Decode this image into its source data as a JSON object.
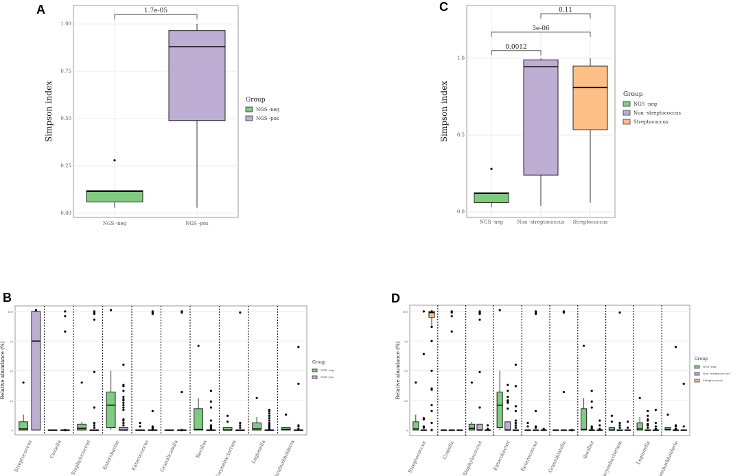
{
  "chart_data": [
    {
      "panel": "A",
      "type": "box",
      "ylabel": "Simpson index",
      "xlabel": "",
      "ylim": [
        -0.02,
        1.1
      ],
      "yticks": [
        "0.00",
        "0.25",
        "0.50",
        "0.75",
        "1.00"
      ],
      "ytick_values": [
        0,
        0.25,
        0.5,
        0.75,
        1.0
      ],
      "legend_title": "Group",
      "legend_position": "right",
      "groups": [
        {
          "name": "NGS -neg",
          "color": "#7FCB7F",
          "lo": 0.03,
          "q1": 0.06,
          "med": 0.115,
          "q3": 0.12,
          "hi": 0.12,
          "outliers": [
            0.28
          ]
        },
        {
          "name": "NGS -pos",
          "color": "#BEAED4",
          "lo": 0.03,
          "q1": 0.49,
          "med": 0.88,
          "q3": 0.965,
          "hi": 1.0,
          "outliers": []
        }
      ],
      "comparisons": [
        {
          "from": 0,
          "to": 1,
          "label": "1.7e-05",
          "y": 1.05
        }
      ]
    },
    {
      "panel": "C",
      "type": "box",
      "ylabel": "Simpson index",
      "xlabel": "",
      "ylim": [
        -0.03,
        1.37
      ],
      "yticks": [
        "0.0",
        "0.5",
        "1.0"
      ],
      "ytick_values": [
        0,
        0.5,
        1.0
      ],
      "legend_title": "Group",
      "legend_position": "right",
      "groups": [
        {
          "name": "NGS -neg",
          "color": "#7FCB7F",
          "lo": 0.03,
          "q1": 0.06,
          "med": 0.12,
          "q3": 0.125,
          "hi": 0.125,
          "outliers": [
            0.28
          ]
        },
        {
          "name": "Non -streptococcus",
          "color": "#BEAED4",
          "lo": 0.04,
          "q1": 0.24,
          "med": 0.945,
          "q3": 0.99,
          "hi": 1.0,
          "outliers": []
        },
        {
          "name": "Streptococcus",
          "color": "#FDC086",
          "lo": 0.06,
          "q1": 0.535,
          "med": 0.81,
          "q3": 0.95,
          "hi": 1.0,
          "outliers": []
        }
      ],
      "comparisons": [
        {
          "from": 0,
          "to": 1,
          "label": "0.0012",
          "y": 1.05
        },
        {
          "from": 0,
          "to": 2,
          "label": "3e-06",
          "y": 1.17
        },
        {
          "from": 1,
          "to": 2,
          "label": "0.11",
          "y": 1.29
        }
      ]
    },
    {
      "panel": "B",
      "type": "box",
      "ylabel": "Relative abundance (%)",
      "xlabel": "",
      "ylim": [
        -5,
        105
      ],
      "yticks": [
        "0",
        "25",
        "50",
        "75",
        "100"
      ],
      "ytick_values": [
        0,
        25,
        50,
        75,
        100
      ],
      "legend_title": "Group",
      "legend_position": "right",
      "group_names": [
        "NGS -neg",
        "NGS -pos"
      ],
      "group_colors": [
        "#7FCB7F",
        "#BEAED4"
      ],
      "categories": [
        "Streptococcus",
        "Coxiella",
        "Staphylococcus",
        "Enterobacter",
        "Enterococcus",
        "Granulicatella",
        "Bacillus",
        "Corynebacterium",
        "Legionella",
        "Paraburkholderia"
      ],
      "boxes": [
        [
          {
            "lo": 0,
            "q1": 0,
            "med": 1,
            "q3": 7,
            "hi": 13,
            "outliers": [
              40
            ]
          },
          {
            "lo": 0,
            "q1": 0,
            "med": 75,
            "q3": 100,
            "hi": 100,
            "outliers": [
              101
            ]
          }
        ],
        [
          {
            "lo": 0,
            "q1": 0,
            "med": 0,
            "q3": 0,
            "hi": 0,
            "outliers": []
          },
          {
            "lo": 0,
            "q1": 0,
            "med": 0,
            "q3": 0,
            "hi": 0,
            "outliers": [
              100,
              96,
              83,
              0
            ]
          }
        ],
        [
          {
            "lo": 0,
            "q1": 0,
            "med": 1.5,
            "q3": 5,
            "hi": 7,
            "outliers": [
              40
            ]
          },
          {
            "lo": 0,
            "q1": 0,
            "med": 0,
            "q3": 0,
            "hi": 0,
            "outliers": [
              100,
              99,
              98,
              93,
              49,
              19,
              6,
              4,
              2
            ]
          }
        ],
        [
          {
            "lo": 0,
            "q1": 2,
            "med": 21,
            "q3": 32,
            "hi": 50,
            "outliers": [
              101
            ]
          },
          {
            "lo": 0,
            "q1": 0,
            "med": 0,
            "q3": 2,
            "hi": 2,
            "outliers": [
              55,
              38,
              37,
              33,
              28,
              26,
              25,
              23,
              21,
              19,
              17,
              9,
              8,
              6,
              4
            ]
          }
        ],
        [
          {
            "lo": 0,
            "q1": 0,
            "med": 0,
            "q3": 0,
            "hi": 0,
            "outliers": [
              6,
              3
            ]
          },
          {
            "lo": 0,
            "q1": 0,
            "med": 0,
            "q3": 0,
            "hi": 0,
            "outliers": [
              100,
              99,
              98,
              16,
              3,
              2,
              1
            ]
          }
        ],
        [
          {
            "lo": 0,
            "q1": 0,
            "med": 0,
            "q3": 0,
            "hi": 0,
            "outliers": []
          },
          {
            "lo": 0,
            "q1": 0,
            "med": 0,
            "q3": 0,
            "hi": 0,
            "outliers": [
              100,
              99,
              32,
              0
            ]
          }
        ],
        [
          {
            "lo": 0,
            "q1": 0,
            "med": 0.5,
            "q3": 18,
            "hi": 27,
            "outliers": [
              71
            ]
          },
          {
            "lo": 0,
            "q1": 0,
            "med": 0,
            "q3": 0,
            "hi": 0,
            "outliers": [
              33,
              24,
              19,
              8,
              4,
              3,
              2,
              1
            ]
          }
        ],
        [
          {
            "lo": 0,
            "q1": 0,
            "med": 0,
            "q3": 2,
            "hi": 2,
            "outliers": [
              12,
              7
            ]
          },
          {
            "lo": 0,
            "q1": 0,
            "med": 0,
            "q3": 0,
            "hi": 0,
            "outliers": [
              99,
              6,
              4,
              2
            ]
          }
        ],
        [
          {
            "lo": 0,
            "q1": 0,
            "med": 1,
            "q3": 6,
            "hi": 11,
            "outliers": [
              27
            ]
          },
          {
            "lo": 0,
            "q1": 0,
            "med": 0,
            "q3": 0,
            "hi": 0,
            "outliers": [
              17,
              16,
              14,
              12,
              10,
              8,
              6,
              5,
              4,
              3,
              2,
              1
            ]
          }
        ],
        [
          {
            "lo": 0,
            "q1": 0,
            "med": 0.5,
            "q3": 2,
            "hi": 2.5,
            "outliers": [
              13
            ]
          },
          {
            "lo": 0,
            "q1": 0,
            "med": 0,
            "q3": 0,
            "hi": 0,
            "outliers": [
              70,
              39,
              4,
              3,
              1
            ]
          }
        ]
      ]
    },
    {
      "panel": "D",
      "type": "box",
      "ylabel": "Relative abundance (%)",
      "xlabel": "",
      "ylim": [
        -5,
        105
      ],
      "yticks": [
        "0",
        "25",
        "50",
        "75",
        "100"
      ],
      "ytick_values": [
        0,
        25,
        50,
        75,
        100
      ],
      "legend_title": "Group",
      "legend_position": "right",
      "group_names": [
        "NGS -neg",
        "Non -streptococcus",
        "Streptococcus"
      ],
      "group_colors": [
        "#7FCB7F",
        "#BEAED4",
        "#FDC086"
      ],
      "categories": [
        "Streptococcus",
        "Coxiella",
        "Staphylococcus",
        "Enterobacter",
        "Enterococcus",
        "Granulicatella",
        "Bacillus",
        "Corynebacterium",
        "Legionella",
        "Paraburkholderia"
      ],
      "boxes": [
        [
          {
            "lo": 0,
            "q1": 0,
            "med": 1,
            "q3": 7,
            "hi": 13,
            "outliers": [
              40
            ]
          },
          {
            "lo": 0,
            "q1": 0,
            "med": 0,
            "q3": 0,
            "hi": 0,
            "outliers": [
              100,
              64,
              10,
              9,
              3,
              2
            ]
          },
          {
            "lo": 88,
            "q1": 95,
            "med": 99,
            "q3": 100,
            "hi": 100,
            "outliers": [
              100,
              87,
              75,
              50,
              35,
              34,
              21,
              16,
              6,
              0
            ]
          }
        ],
        [
          {
            "lo": 0,
            "q1": 0,
            "med": 0,
            "q3": 0,
            "hi": 0,
            "outliers": []
          },
          {
            "lo": 0,
            "q1": 0,
            "med": 0,
            "q3": 0,
            "hi": 0,
            "outliers": [
              100,
              99,
              96,
              83
            ]
          },
          {
            "lo": 0,
            "q1": 0,
            "med": 0,
            "q3": 0,
            "hi": 0,
            "outliers": []
          }
        ],
        [
          {
            "lo": 0,
            "q1": 0,
            "med": 1.5,
            "q3": 5,
            "hi": 7,
            "outliers": [
              40
            ]
          },
          {
            "lo": 0,
            "q1": 0,
            "med": 0,
            "q3": 5,
            "hi": 5,
            "outliers": [
              100,
              99,
              98,
              93,
              49,
              19
            ]
          },
          {
            "lo": 0,
            "q1": 0,
            "med": 0,
            "q3": 0,
            "hi": 0,
            "outliers": [
              4,
              1
            ]
          }
        ],
        [
          {
            "lo": 0,
            "q1": 2,
            "med": 21,
            "q3": 32,
            "hi": 50,
            "outliers": [
              101
            ]
          },
          {
            "lo": 0,
            "q1": 0,
            "med": 0,
            "q3": 7,
            "hi": 7,
            "outliers": [
              38,
              33,
              28,
              25,
              24,
              23,
              18
            ]
          },
          {
            "lo": 0,
            "q1": 0,
            "med": 0,
            "q3": 0,
            "hi": 0,
            "outliers": [
              55,
              37,
              20,
              16,
              8,
              6,
              4,
              2
            ]
          }
        ],
        [
          {
            "lo": 0,
            "q1": 0,
            "med": 0,
            "q3": 0,
            "hi": 0,
            "outliers": [
              6,
              3
            ]
          },
          {
            "lo": 0,
            "q1": 0,
            "med": 0,
            "q3": 0,
            "hi": 0,
            "outliers": [
              100,
              99,
              98,
              16,
              3,
              2
            ]
          },
          {
            "lo": 0,
            "q1": 0,
            "med": 0,
            "q3": 0,
            "hi": 0,
            "outliers": [
              1
            ]
          }
        ],
        [
          {
            "lo": 0,
            "q1": 0,
            "med": 0,
            "q3": 0,
            "hi": 0,
            "outliers": []
          },
          {
            "lo": 0,
            "q1": 0,
            "med": 0,
            "q3": 0,
            "hi": 0,
            "outliers": [
              100,
              99,
              32
            ]
          },
          {
            "lo": 0,
            "q1": 0,
            "med": 0,
            "q3": 0,
            "hi": 0,
            "outliers": [
              0
            ]
          }
        ],
        [
          {
            "lo": 0,
            "q1": 0,
            "med": 0.5,
            "q3": 18,
            "hi": 27,
            "outliers": [
              71
            ]
          },
          {
            "lo": 0,
            "q1": 0,
            "med": 0,
            "q3": 0,
            "hi": 0,
            "outliers": [
              33,
              24,
              19,
              3,
              2,
              1
            ]
          },
          {
            "lo": 0,
            "q1": 0,
            "med": 0,
            "q3": 0,
            "hi": 0,
            "outliers": [
              8,
              4,
              1
            ]
          }
        ],
        [
          {
            "lo": 0,
            "q1": 0,
            "med": 0,
            "q3": 2,
            "hi": 2,
            "outliers": [
              12,
              7
            ]
          },
          {
            "lo": 0,
            "q1": 0,
            "med": 0,
            "q3": 0,
            "hi": 0,
            "outliers": [
              99,
              6,
              4,
              2
            ]
          },
          {
            "lo": 0,
            "q1": 0,
            "med": 0,
            "q3": 0,
            "hi": 0,
            "outliers": [
              7,
              2
            ]
          }
        ],
        [
          {
            "lo": 0,
            "q1": 0,
            "med": 1,
            "q3": 6,
            "hi": 11,
            "outliers": [
              27
            ]
          },
          {
            "lo": 0,
            "q1": 0,
            "med": 0,
            "q3": 0,
            "hi": 0,
            "outliers": [
              16,
              12,
              9,
              8,
              5,
              4,
              2
            ]
          },
          {
            "lo": 0,
            "q1": 0,
            "med": 0,
            "q3": 0,
            "hi": 0,
            "outliers": [
              17,
              6,
              3,
              1
            ]
          }
        ],
        [
          {
            "lo": 0,
            "q1": 0,
            "med": 0.5,
            "q3": 2,
            "hi": 2.5,
            "outliers": [
              13
            ]
          },
          {
            "lo": 0,
            "q1": 0,
            "med": 0,
            "q3": 0,
            "hi": 0,
            "outliers": [
              70,
              4,
              3,
              1
            ]
          },
          {
            "lo": 0,
            "q1": 0,
            "med": 0,
            "q3": 0,
            "hi": 0,
            "outliers": [
              39,
              3
            ]
          }
        ]
      ]
    }
  ]
}
